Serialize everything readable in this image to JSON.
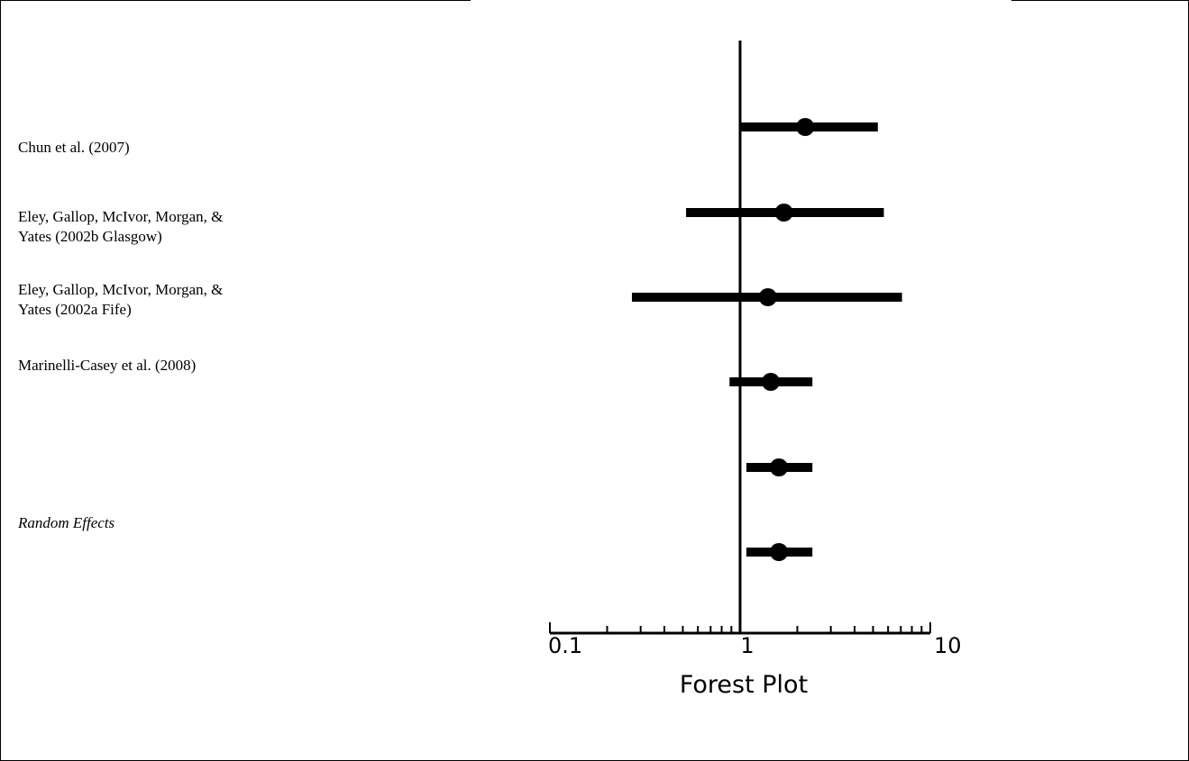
{
  "chart_data": {
    "type": "forest",
    "title": "",
    "xlabel": "Forest Plot",
    "ylabel": "",
    "x_scale": "log",
    "xlim": [
      0.1,
      10
    ],
    "reference_line": 1,
    "grid": false,
    "x_ticks": [
      {
        "value": 0.1,
        "label": "0.1"
      },
      {
        "value": 1,
        "label": "1"
      },
      {
        "value": 10,
        "label": "10"
      }
    ],
    "rows": [
      {
        "label": "Chun et al. (2007)",
        "estimate": 2.2,
        "lower": 1.0,
        "upper": 5.3
      },
      {
        "label": "Eley, Gallop, McIvor, Morgan, &\nYates (2002b Glasgow)",
        "estimate": 1.7,
        "lower": 0.52,
        "upper": 5.7
      },
      {
        "label": "Eley, Gallop, McIvor, Morgan, &\nYates (2002a Fife)",
        "estimate": 1.4,
        "lower": 0.27,
        "upper": 7.1
      },
      {
        "label": "Marinelli-Casey et al. (2008)",
        "estimate": 1.45,
        "lower": 0.88,
        "upper": 2.4
      },
      {
        "label": "",
        "estimate": 1.6,
        "lower": 1.08,
        "upper": 2.4
      },
      {
        "label": "Random Effects",
        "label_style": "italic",
        "estimate": 1.6,
        "lower": 1.08,
        "upper": 2.4
      }
    ]
  }
}
